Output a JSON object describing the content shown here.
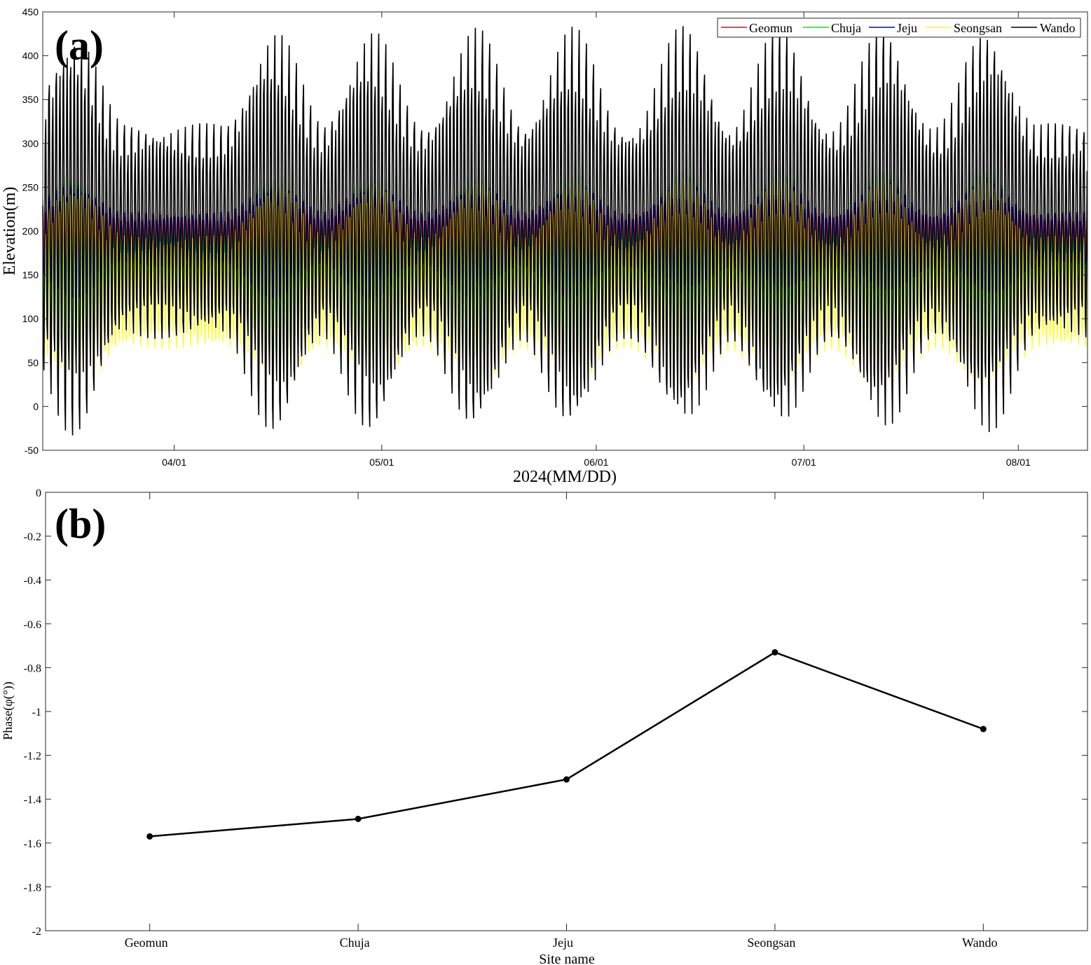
{
  "chart_data": [
    {
      "id": "a",
      "type": "line",
      "panel_label": "(a)",
      "xlabel": "2024(MM/DD)",
      "ylabel": "Elevation(m)",
      "ylim": [
        -50,
        450
      ],
      "yticks": [
        -50,
        0,
        50,
        100,
        150,
        200,
        250,
        300,
        350,
        400,
        450
      ],
      "xlim_days": [
        0,
        151
      ],
      "xticks": [
        {
          "day": 19,
          "label": "04/01"
        },
        {
          "day": 49,
          "label": "05/01"
        },
        {
          "day": 80,
          "label": "06/01"
        },
        {
          "day": 110,
          "label": "07/01"
        },
        {
          "day": 141,
          "label": "08/01"
        }
      ],
      "legend_position": "top-right",
      "series": [
        {
          "name": "Geomun",
          "color": "#ff0000",
          "mean": 195,
          "amp_spring": 55,
          "amp_neap": 25
        },
        {
          "name": "Chuja",
          "color": "#00ee00",
          "mean": 165,
          "amp_spring": 100,
          "amp_neap": 45
        },
        {
          "name": "Jeju",
          "color": "#0000ff",
          "mean": 190,
          "amp_spring": 60,
          "amp_neap": 28
        },
        {
          "name": "Seongsan",
          "color": "#ffff00",
          "mean": 130,
          "amp_spring": 110,
          "amp_neap": 55
        },
        {
          "name": "Wando",
          "color": "#000000",
          "mean": 200,
          "amp_spring": 210,
          "amp_neap": 110
        }
      ],
      "spring_peak_days": [
        4.5,
        33.5,
        47.5,
        62.5,
        76.5,
        92.5,
        106.5,
        121.5,
        136.5
      ]
    },
    {
      "id": "b",
      "type": "line",
      "panel_label": "(b)",
      "xlabel": "Site name",
      "ylabel": "Phase(φ(°))",
      "ylim": [
        -2,
        0
      ],
      "yticks": [
        -2,
        -1.8,
        -1.6,
        -1.4,
        -1.2,
        -1,
        -0.8,
        -0.6,
        -0.4,
        -0.2,
        0
      ],
      "categories": [
        "Geomun",
        "Chuja",
        "Jeju",
        "Seongsan",
        "Wando"
      ],
      "values": [
        -1.57,
        -1.49,
        -1.31,
        -0.73,
        -1.08
      ],
      "color": "#000000"
    }
  ]
}
